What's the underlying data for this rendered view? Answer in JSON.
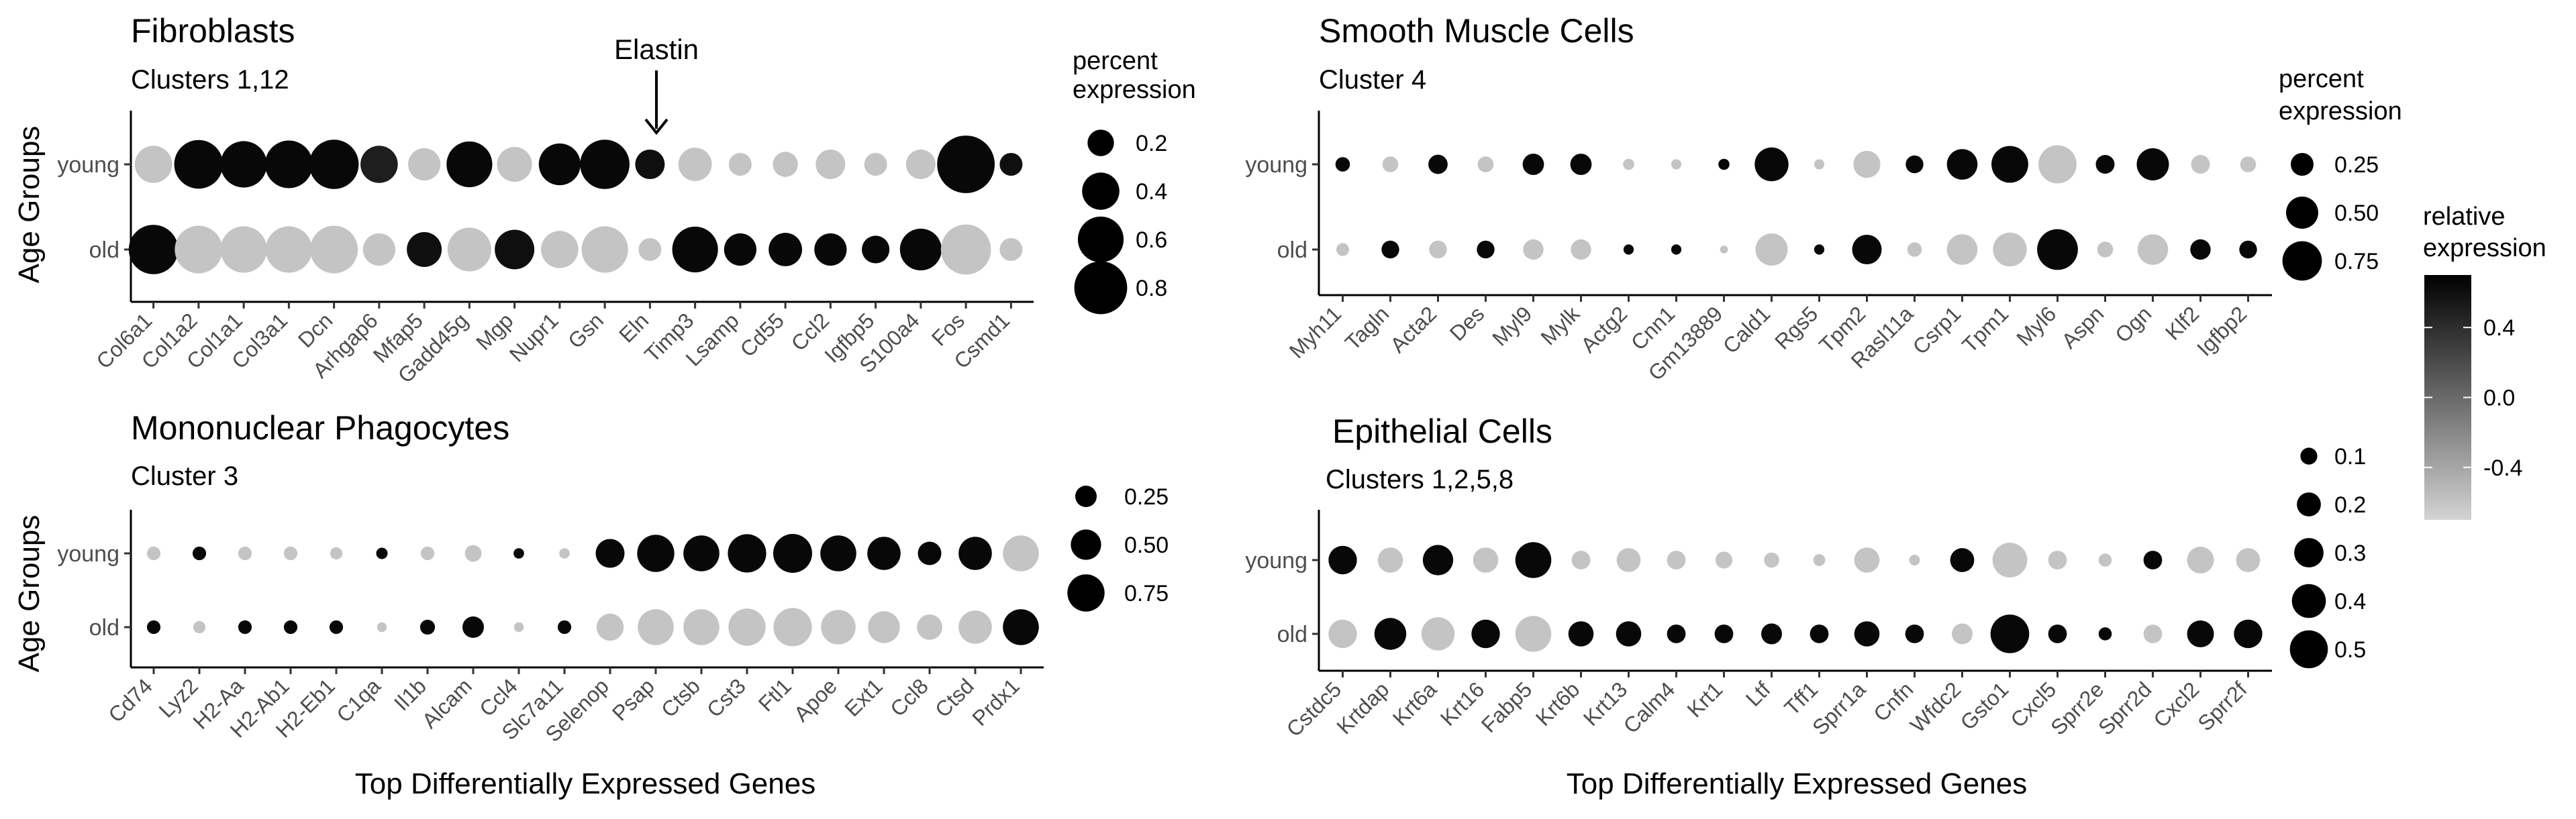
{
  "colors": {
    "high": "#000000",
    "low": "#d3d3d3"
  },
  "chart_data": [
    {
      "type": "dotplot",
      "title": "Fibroblasts",
      "subtitle": "Clusters 1,12",
      "ylabel": "Age Groups",
      "xlabel": "",
      "annotation": {
        "text": "Elastin",
        "gene": "Eln"
      },
      "groups": [
        "young",
        "old"
      ],
      "genes": [
        "Col6a1",
        "Col1a2",
        "Col1a1",
        "Col3a1",
        "Dcn",
        "Arhgap6",
        "Mfap5",
        "Gadd45g",
        "Mgp",
        "Nupr1",
        "Gsn",
        "Eln",
        "Timp3",
        "Lsamp",
        "Cd55",
        "Ccl2",
        "Igfbp5",
        "S100a4",
        "Fos",
        "Csmd1"
      ],
      "percent": {
        "young": [
          0.4,
          0.68,
          0.62,
          0.65,
          0.7,
          0.4,
          0.3,
          0.6,
          0.35,
          0.5,
          0.7,
          0.25,
          0.32,
          0.15,
          0.18,
          0.25,
          0.15,
          0.25,
          0.95,
          0.15
        ],
        "old": [
          0.7,
          0.65,
          0.62,
          0.62,
          0.65,
          0.3,
          0.35,
          0.55,
          0.45,
          0.4,
          0.62,
          0.15,
          0.6,
          0.3,
          0.32,
          0.3,
          0.22,
          0.5,
          0.72,
          0.15
        ]
      },
      "expression": {
        "young": [
          -0.6,
          0.65,
          0.65,
          0.65,
          0.65,
          0.5,
          -0.6,
          0.65,
          -0.6,
          0.65,
          0.65,
          0.6,
          -0.6,
          -0.6,
          -0.6,
          -0.6,
          -0.6,
          -0.6,
          0.65,
          0.6
        ],
        "old": [
          0.65,
          -0.6,
          -0.6,
          -0.6,
          -0.6,
          -0.6,
          0.6,
          -0.6,
          0.6,
          -0.6,
          -0.6,
          -0.6,
          0.65,
          0.65,
          0.65,
          0.65,
          0.65,
          0.65,
          -0.6,
          -0.6
        ]
      },
      "size_legend": {
        "title": "percent\nexpression",
        "breaks": [
          0.2,
          0.4,
          0.6,
          0.8
        ]
      }
    },
    {
      "type": "dotplot",
      "title": "Smooth Muscle Cells",
      "subtitle": "Cluster 4",
      "ylabel": "",
      "xlabel": "",
      "groups": [
        "young",
        "old"
      ],
      "genes": [
        "Myh11",
        "Tagln",
        "Acta2",
        "Des",
        "Myl9",
        "Mylk",
        "Actg2",
        "Cnn1",
        "Gm13889",
        "Cald1",
        "Rgs5",
        "Tpm2",
        "Rasl11a",
        "Csrp1",
        "Tpm1",
        "Myl6",
        "Aspn",
        "Ogn",
        "Klf2",
        "Igfbp2"
      ],
      "percent": {
        "young": [
          0.1,
          0.12,
          0.18,
          0.12,
          0.22,
          0.22,
          0.06,
          0.05,
          0.06,
          0.55,
          0.05,
          0.35,
          0.15,
          0.45,
          0.65,
          0.7,
          0.17,
          0.5,
          0.17,
          0.12
        ],
        "old": [
          0.08,
          0.15,
          0.15,
          0.15,
          0.2,
          0.2,
          0.05,
          0.05,
          0.03,
          0.5,
          0.05,
          0.42,
          0.1,
          0.45,
          0.55,
          0.8,
          0.12,
          0.45,
          0.2,
          0.15
        ]
      },
      "expression": {
        "young": [
          0.65,
          -0.6,
          0.65,
          -0.6,
          0.65,
          0.65,
          -0.6,
          -0.6,
          0.65,
          0.65,
          -0.6,
          -0.6,
          0.65,
          0.65,
          0.65,
          -0.6,
          0.65,
          0.65,
          -0.6,
          -0.6
        ],
        "old": [
          -0.6,
          0.65,
          -0.6,
          0.65,
          -0.6,
          -0.6,
          0.65,
          0.65,
          -0.6,
          -0.6,
          0.65,
          0.65,
          -0.6,
          -0.6,
          -0.6,
          0.65,
          -0.6,
          -0.6,
          0.65,
          0.65
        ]
      },
      "size_legend": {
        "title": "percent\nexpression",
        "breaks": [
          0.25,
          0.5,
          0.75
        ]
      },
      "color_legend": {
        "title": "relative\nexpression",
        "range": [
          -0.7,
          0.7
        ],
        "breaks": [
          0.4,
          0.0,
          -0.4
        ],
        "labels": [
          "0.4",
          "0.0",
          "-0.4"
        ]
      }
    },
    {
      "type": "dotplot",
      "title": "Mononuclear Phagocytes",
      "subtitle": "Cluster 3",
      "ylabel": "Age Groups",
      "xlabel": "Top Differentially Expressed Genes",
      "groups": [
        "young",
        "old"
      ],
      "genes": [
        "Cd74",
        "Lyz2",
        "H2-Aa",
        "H2-Ab1",
        "H2-Eb1",
        "C1qa",
        "Il1b",
        "Alcam",
        "Ccl4",
        "Slc7a11",
        "Selenop",
        "Psap",
        "Ctsb",
        "Cst3",
        "Ftl1",
        "Apoe",
        "Ext1",
        "Ccl8",
        "Ctsd",
        "Prdx1"
      ],
      "percent": {
        "young": [
          0.1,
          0.1,
          0.1,
          0.1,
          0.08,
          0.07,
          0.1,
          0.15,
          0.06,
          0.06,
          0.45,
          0.75,
          0.7,
          0.8,
          0.82,
          0.7,
          0.6,
          0.3,
          0.6,
          0.7
        ],
        "old": [
          0.1,
          0.08,
          0.1,
          0.1,
          0.1,
          0.05,
          0.12,
          0.25,
          0.05,
          0.1,
          0.4,
          0.7,
          0.7,
          0.75,
          0.8,
          0.65,
          0.55,
          0.35,
          0.6,
          0.7
        ]
      },
      "expression": {
        "young": [
          -0.6,
          0.65,
          -0.6,
          -0.6,
          -0.6,
          0.65,
          -0.6,
          -0.6,
          0.65,
          -0.6,
          0.65,
          0.65,
          0.65,
          0.65,
          0.65,
          0.65,
          0.65,
          0.65,
          0.65,
          -0.6
        ],
        "old": [
          0.65,
          -0.6,
          0.65,
          0.65,
          0.65,
          -0.6,
          0.65,
          0.65,
          -0.6,
          0.65,
          -0.6,
          -0.6,
          -0.6,
          -0.6,
          -0.6,
          -0.6,
          -0.6,
          -0.6,
          -0.6,
          0.65
        ]
      },
      "size_legend": {
        "title": "",
        "breaks": [
          0.25,
          0.5,
          0.75
        ]
      }
    },
    {
      "type": "dotplot",
      "title": "Epithelial Cells",
      "subtitle": "Clusters 1,2,5,8",
      "ylabel": "",
      "xlabel": "Top Differentially Expressed Genes",
      "groups": [
        "young",
        "old"
      ],
      "genes": [
        "Cstdc5",
        "Krtdap",
        "Krt6a",
        "Krt16",
        "Fabp5",
        "Krt6b",
        "Krt13",
        "Calm4",
        "Krt1",
        "Ltf",
        "Tff1",
        "Sprr1a",
        "Cnfn",
        "Wfdc2",
        "Gsto1",
        "Cxcl5",
        "Sprr2e",
        "Sprr2d",
        "Cxcl2",
        "Sprr2f"
      ],
      "percent": {
        "young": [
          0.28,
          0.22,
          0.32,
          0.22,
          0.45,
          0.12,
          0.2,
          0.12,
          0.1,
          0.08,
          0.05,
          0.22,
          0.04,
          0.2,
          0.42,
          0.12,
          0.06,
          0.12,
          0.25,
          0.2
        ],
        "old": [
          0.28,
          0.35,
          0.38,
          0.28,
          0.45,
          0.22,
          0.22,
          0.12,
          0.12,
          0.15,
          0.12,
          0.22,
          0.12,
          0.15,
          0.52,
          0.12,
          0.06,
          0.12,
          0.25,
          0.28
        ]
      },
      "expression": {
        "young": [
          0.65,
          -0.6,
          0.65,
          -0.6,
          0.65,
          -0.6,
          -0.6,
          -0.6,
          -0.6,
          -0.6,
          -0.6,
          -0.6,
          -0.6,
          0.65,
          -0.6,
          -0.6,
          -0.6,
          0.65,
          -0.6,
          -0.6
        ],
        "old": [
          -0.6,
          0.65,
          -0.6,
          0.65,
          -0.6,
          0.65,
          0.65,
          0.65,
          0.65,
          0.65,
          0.65,
          0.65,
          0.65,
          -0.6,
          0.65,
          0.65,
          0.65,
          -0.6,
          0.65,
          0.65
        ]
      },
      "size_legend": {
        "title": "",
        "breaks": [
          0.1,
          0.2,
          0.3,
          0.4,
          0.5
        ]
      }
    }
  ]
}
